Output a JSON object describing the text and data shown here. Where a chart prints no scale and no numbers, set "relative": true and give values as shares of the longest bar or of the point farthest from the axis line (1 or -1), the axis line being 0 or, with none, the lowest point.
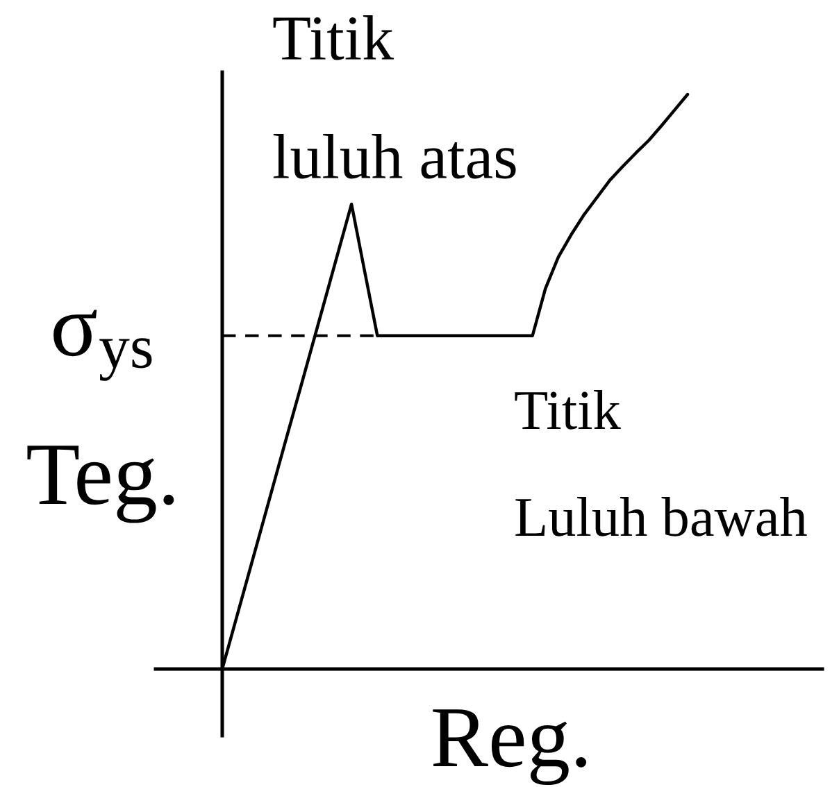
{
  "chart_data": {
    "type": "line",
    "relative": true,
    "color": "#000000",
    "categories": [
      null,
      null,
      null,
      null,
      null,
      null,
      null,
      null,
      null,
      null,
      null,
      null,
      null,
      null,
      null,
      null,
      null,
      null,
      null,
      null,
      null,
      null,
      null,
      null,
      null,
      null,
      null,
      null,
      null,
      null,
      null,
      null,
      null,
      null,
      null,
      null,
      null
    ],
    "values": [
      0,
      0.081,
      0.162,
      0.243,
      0.324,
      0.405,
      0.485,
      0.566,
      0.647,
      0.728,
      0.809,
      0.694,
      0.58,
      0.58,
      0.58,
      0.58,
      0.58,
      0.58,
      0.58,
      0.58,
      0.58,
      0.58,
      0.58,
      0.58,
      0.58,
      0.662,
      0.717,
      0.756,
      0.791,
      0.821,
      0.851,
      0.875,
      0.898,
      0.92,
      0.946,
      0.973,
      1
    ],
    "xlabel": "Reg.",
    "ylabel": "Teg.",
    "ref_lines": [
      {
        "axis": "y",
        "value": 0.58,
        "label": "σ$_{ys}$",
        "line_style": "dashed",
        "color": "#000000"
      }
    ],
    "annotations": [
      "Titik\nluluh atas",
      "Titik\nLuluh bawah"
    ]
  }
}
